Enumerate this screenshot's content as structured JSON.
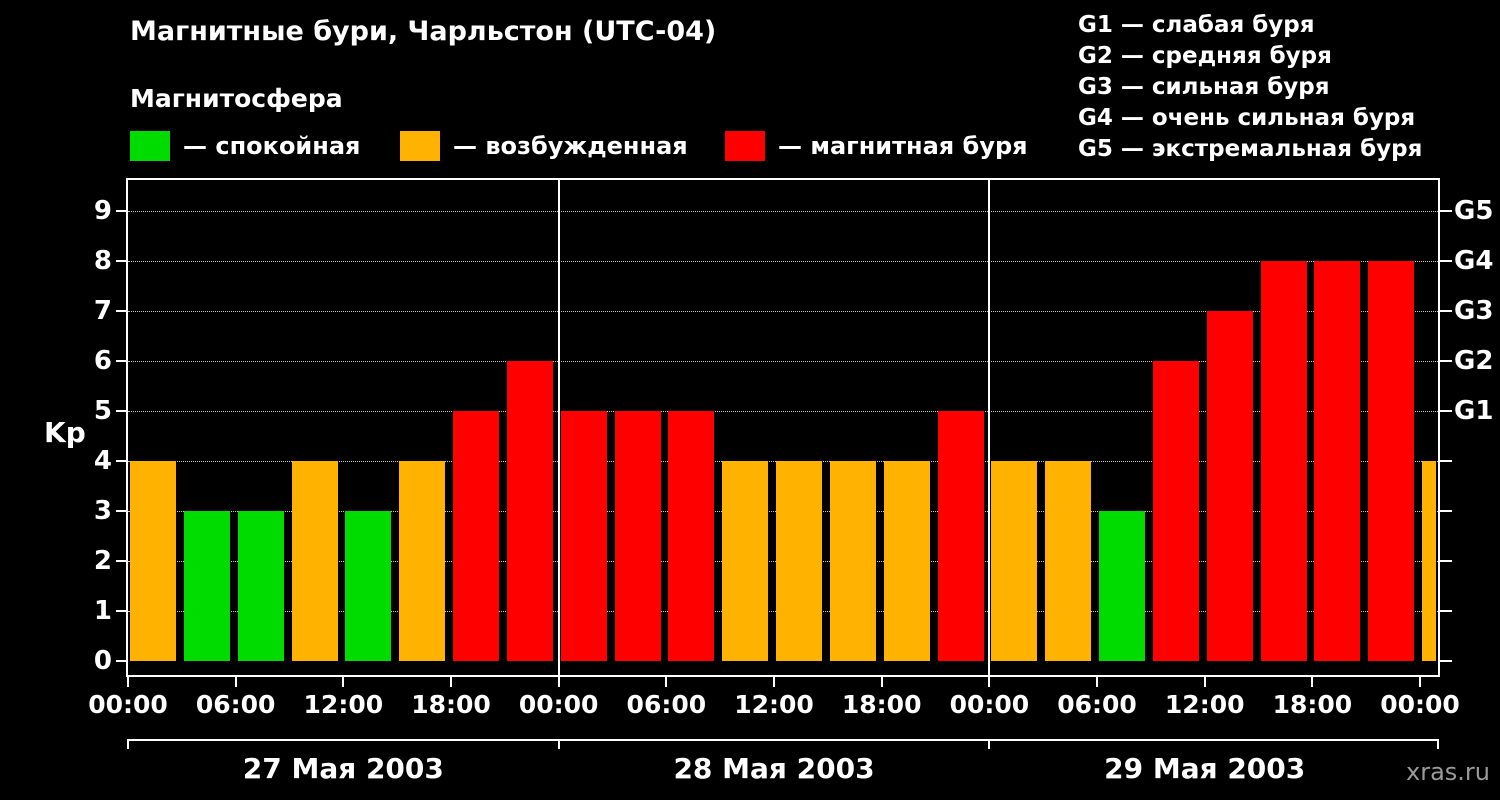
{
  "header": {
    "title": "Магнитные бури, Чарльстон (UTC-04)"
  },
  "g_legend": [
    "G1 — слабая буря",
    "G2 — средняя буря",
    "G3 — сильная буря",
    "G4 — очень сильная буря",
    "G5 — экстремальная буря"
  ],
  "magnetosphere": {
    "heading": "Магнитосфера",
    "legend": [
      {
        "state": "calm",
        "label": "— спокойная",
        "color": "#00dc00"
      },
      {
        "state": "excited",
        "label": "— возбужденная",
        "color": "#ffb300"
      },
      {
        "state": "storm",
        "label": "— магнитная буря",
        "color": "#ff0000"
      }
    ]
  },
  "watermark": "xras.ru",
  "chart_data": {
    "type": "bar",
    "title": "Магнитные бури, Чарльстон (UTC-04)",
    "ylabel": "Kp",
    "ylim": [
      0,
      9
    ],
    "grid": "dotted-horizontal",
    "y_ticks": [
      0,
      1,
      2,
      3,
      4,
      5,
      6,
      7,
      8,
      9
    ],
    "right_axis": [
      {
        "kp": 5,
        "label": "G1"
      },
      {
        "kp": 6,
        "label": "G2"
      },
      {
        "kp": 7,
        "label": "G3"
      },
      {
        "kp": 8,
        "label": "G4"
      },
      {
        "kp": 9,
        "label": "G5"
      }
    ],
    "x_tick_hours_step": 6,
    "x_tick_labels": [
      "00:00",
      "06:00",
      "12:00",
      "18:00",
      "00:00",
      "06:00",
      "12:00",
      "18:00",
      "00:00",
      "06:00",
      "12:00",
      "18:00",
      "00:00"
    ],
    "days": [
      {
        "label": "27 Мая 2003",
        "start_hour": 0
      },
      {
        "label": "28 Мая 2003",
        "start_hour": 24
      },
      {
        "label": "29 Мая 2003",
        "start_hour": 48
      }
    ],
    "bar_interval_hours": 3,
    "colors": {
      "calm": "#00dc00",
      "excited": "#ffb300",
      "storm": "#ff0000"
    },
    "bars": [
      {
        "start_hour": 0,
        "kp": 4,
        "state": "excited"
      },
      {
        "start_hour": 3,
        "kp": 3,
        "state": "calm"
      },
      {
        "start_hour": 6,
        "kp": 3,
        "state": "calm"
      },
      {
        "start_hour": 9,
        "kp": 4,
        "state": "excited"
      },
      {
        "start_hour": 12,
        "kp": 3,
        "state": "calm"
      },
      {
        "start_hour": 15,
        "kp": 4,
        "state": "excited"
      },
      {
        "start_hour": 18,
        "kp": 5,
        "state": "storm"
      },
      {
        "start_hour": 21,
        "kp": 6,
        "state": "storm"
      },
      {
        "start_hour": 24,
        "kp": 5,
        "state": "storm"
      },
      {
        "start_hour": 27,
        "kp": 5,
        "state": "storm"
      },
      {
        "start_hour": 30,
        "kp": 5,
        "state": "storm"
      },
      {
        "start_hour": 33,
        "kp": 4,
        "state": "excited"
      },
      {
        "start_hour": 36,
        "kp": 4,
        "state": "excited"
      },
      {
        "start_hour": 39,
        "kp": 4,
        "state": "excited"
      },
      {
        "start_hour": 42,
        "kp": 4,
        "state": "excited"
      },
      {
        "start_hour": 45,
        "kp": 5,
        "state": "storm"
      },
      {
        "start_hour": 48,
        "kp": 4,
        "state": "excited"
      },
      {
        "start_hour": 51,
        "kp": 4,
        "state": "excited"
      },
      {
        "start_hour": 54,
        "kp": 3,
        "state": "calm"
      },
      {
        "start_hour": 57,
        "kp": 6,
        "state": "storm"
      },
      {
        "start_hour": 60,
        "kp": 7,
        "state": "storm"
      },
      {
        "start_hour": 63,
        "kp": 8,
        "state": "storm"
      },
      {
        "start_hour": 66,
        "kp": 8,
        "state": "storm"
      },
      {
        "start_hour": 69,
        "kp": 8,
        "state": "storm"
      },
      {
        "start_hour": 72,
        "kp": 4,
        "state": "excited",
        "clipped": true
      }
    ]
  }
}
